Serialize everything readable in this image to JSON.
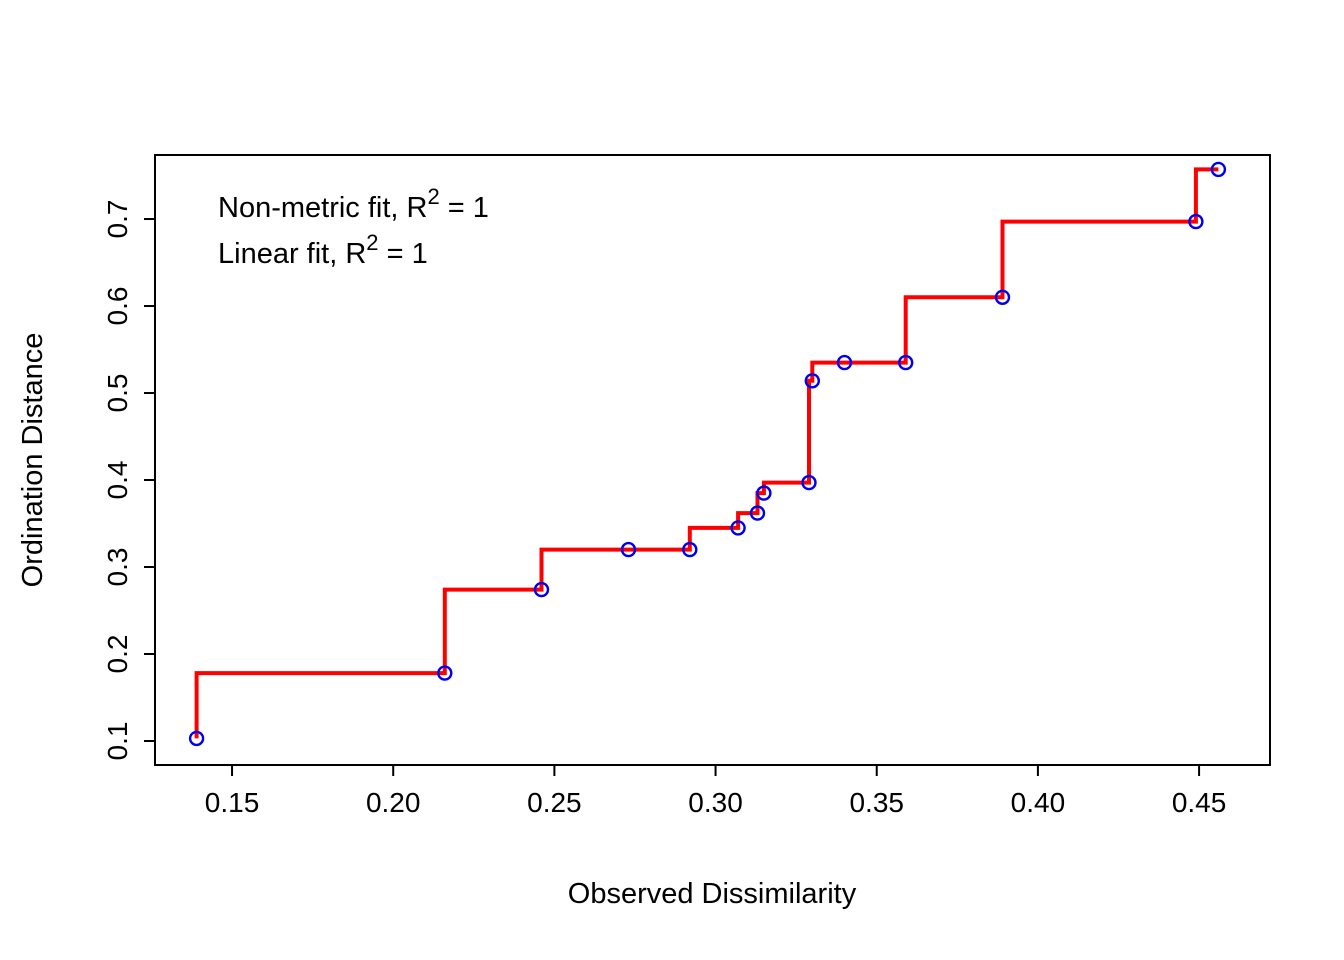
{
  "chart_data": {
    "type": "scatter",
    "subtype": "shepard-stress-diagram",
    "title": "",
    "xlabel": "Observed Dissimilarity",
    "ylabel": "Ordination Distance",
    "xlim": [
      0.1261,
      0.472
    ],
    "ylim": [
      0.0724,
      0.7736
    ],
    "grid": false,
    "legend_position": "none",
    "x_tick_labels": [
      "0.15",
      "0.20",
      "0.25",
      "0.30",
      "0.35",
      "0.40",
      "0.45"
    ],
    "y_tick_labels": [
      "0.1",
      "0.2",
      "0.3",
      "0.4",
      "0.5",
      "0.6",
      "0.7"
    ],
    "series": [
      {
        "name": "observed-vs-ordination-points",
        "marker": "open-circle",
        "color": "#0000ee",
        "points": [
          [
            0.139,
            0.103
          ],
          [
            0.216,
            0.178
          ],
          [
            0.246,
            0.274
          ],
          [
            0.273,
            0.32
          ],
          [
            0.292,
            0.32
          ],
          [
            0.307,
            0.345
          ],
          [
            0.313,
            0.362
          ],
          [
            0.315,
            0.385
          ],
          [
            0.329,
            0.397
          ],
          [
            0.33,
            0.514
          ],
          [
            0.34,
            0.535
          ],
          [
            0.359,
            0.535
          ],
          [
            0.389,
            0.61
          ],
          [
            0.449,
            0.697
          ],
          [
            0.456,
            0.757
          ]
        ]
      },
      {
        "name": "monotone-regression-step-fit",
        "line_type": "step-vertical-then-horizontal",
        "color": "#ff0000",
        "uses_points_of": "observed-vs-ordination-points"
      }
    ],
    "annotations": [
      {
        "prefix": "Non-metric fit, R",
        "superscript": "2",
        "suffix": " = 1"
      },
      {
        "prefix": "Linear fit, R",
        "superscript": "2",
        "suffix": " = 1"
      }
    ],
    "colors": {
      "fit_line": "#ff0000",
      "marker": "#0000ee",
      "axis": "#000000",
      "background": "#ffffff"
    }
  }
}
